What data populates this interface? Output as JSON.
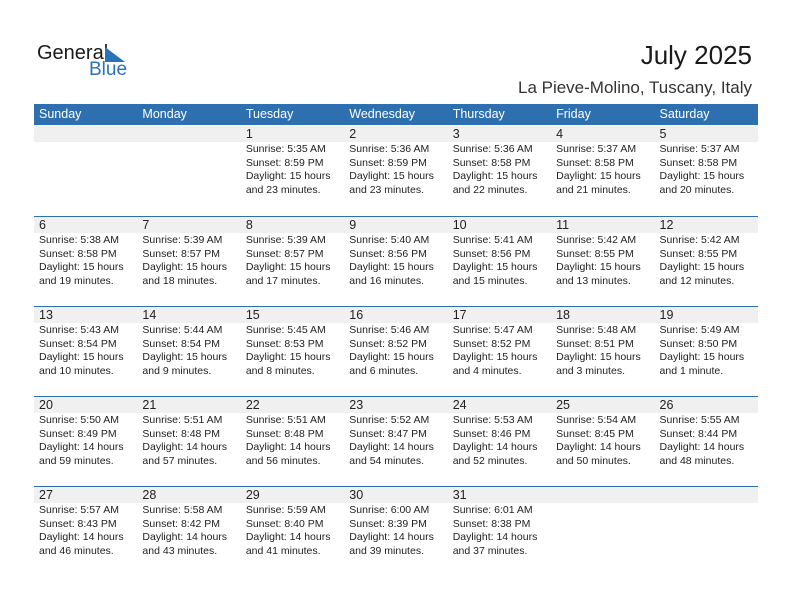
{
  "logo": {
    "general": "General",
    "blue": "Blue"
  },
  "title": "July 2025",
  "location": "La Pieve-Molino, Tuscany, Italy",
  "weekdays": [
    "Sunday",
    "Monday",
    "Tuesday",
    "Wednesday",
    "Thursday",
    "Friday",
    "Saturday"
  ],
  "colors": {
    "header": "#2e6fb0",
    "band": "#f0f0f0"
  },
  "weeks": [
    [
      null,
      null,
      {
        "day": "1",
        "sunrise": "Sunrise: 5:35 AM",
        "sunset": "Sunset: 8:59 PM",
        "daylight1": "Daylight: 15 hours",
        "daylight2": "and 23 minutes."
      },
      {
        "day": "2",
        "sunrise": "Sunrise: 5:36 AM",
        "sunset": "Sunset: 8:59 PM",
        "daylight1": "Daylight: 15 hours",
        "daylight2": "and 23 minutes."
      },
      {
        "day": "3",
        "sunrise": "Sunrise: 5:36 AM",
        "sunset": "Sunset: 8:58 PM",
        "daylight1": "Daylight: 15 hours",
        "daylight2": "and 22 minutes."
      },
      {
        "day": "4",
        "sunrise": "Sunrise: 5:37 AM",
        "sunset": "Sunset: 8:58 PM",
        "daylight1": "Daylight: 15 hours",
        "daylight2": "and 21 minutes."
      },
      {
        "day": "5",
        "sunrise": "Sunrise: 5:37 AM",
        "sunset": "Sunset: 8:58 PM",
        "daylight1": "Daylight: 15 hours",
        "daylight2": "and 20 minutes."
      }
    ],
    [
      {
        "day": "6",
        "sunrise": "Sunrise: 5:38 AM",
        "sunset": "Sunset: 8:58 PM",
        "daylight1": "Daylight: 15 hours",
        "daylight2": "and 19 minutes."
      },
      {
        "day": "7",
        "sunrise": "Sunrise: 5:39 AM",
        "sunset": "Sunset: 8:57 PM",
        "daylight1": "Daylight: 15 hours",
        "daylight2": "and 18 minutes."
      },
      {
        "day": "8",
        "sunrise": "Sunrise: 5:39 AM",
        "sunset": "Sunset: 8:57 PM",
        "daylight1": "Daylight: 15 hours",
        "daylight2": "and 17 minutes."
      },
      {
        "day": "9",
        "sunrise": "Sunrise: 5:40 AM",
        "sunset": "Sunset: 8:56 PM",
        "daylight1": "Daylight: 15 hours",
        "daylight2": "and 16 minutes."
      },
      {
        "day": "10",
        "sunrise": "Sunrise: 5:41 AM",
        "sunset": "Sunset: 8:56 PM",
        "daylight1": "Daylight: 15 hours",
        "daylight2": "and 15 minutes."
      },
      {
        "day": "11",
        "sunrise": "Sunrise: 5:42 AM",
        "sunset": "Sunset: 8:55 PM",
        "daylight1": "Daylight: 15 hours",
        "daylight2": "and 13 minutes."
      },
      {
        "day": "12",
        "sunrise": "Sunrise: 5:42 AM",
        "sunset": "Sunset: 8:55 PM",
        "daylight1": "Daylight: 15 hours",
        "daylight2": "and 12 minutes."
      }
    ],
    [
      {
        "day": "13",
        "sunrise": "Sunrise: 5:43 AM",
        "sunset": "Sunset: 8:54 PM",
        "daylight1": "Daylight: 15 hours",
        "daylight2": "and 10 minutes."
      },
      {
        "day": "14",
        "sunrise": "Sunrise: 5:44 AM",
        "sunset": "Sunset: 8:54 PM",
        "daylight1": "Daylight: 15 hours",
        "daylight2": "and 9 minutes."
      },
      {
        "day": "15",
        "sunrise": "Sunrise: 5:45 AM",
        "sunset": "Sunset: 8:53 PM",
        "daylight1": "Daylight: 15 hours",
        "daylight2": "and 8 minutes."
      },
      {
        "day": "16",
        "sunrise": "Sunrise: 5:46 AM",
        "sunset": "Sunset: 8:52 PM",
        "daylight1": "Daylight: 15 hours",
        "daylight2": "and 6 minutes."
      },
      {
        "day": "17",
        "sunrise": "Sunrise: 5:47 AM",
        "sunset": "Sunset: 8:52 PM",
        "daylight1": "Daylight: 15 hours",
        "daylight2": "and 4 minutes."
      },
      {
        "day": "18",
        "sunrise": "Sunrise: 5:48 AM",
        "sunset": "Sunset: 8:51 PM",
        "daylight1": "Daylight: 15 hours",
        "daylight2": "and 3 minutes."
      },
      {
        "day": "19",
        "sunrise": "Sunrise: 5:49 AM",
        "sunset": "Sunset: 8:50 PM",
        "daylight1": "Daylight: 15 hours",
        "daylight2": "and 1 minute."
      }
    ],
    [
      {
        "day": "20",
        "sunrise": "Sunrise: 5:50 AM",
        "sunset": "Sunset: 8:49 PM",
        "daylight1": "Daylight: 14 hours",
        "daylight2": "and 59 minutes."
      },
      {
        "day": "21",
        "sunrise": "Sunrise: 5:51 AM",
        "sunset": "Sunset: 8:48 PM",
        "daylight1": "Daylight: 14 hours",
        "daylight2": "and 57 minutes."
      },
      {
        "day": "22",
        "sunrise": "Sunrise: 5:51 AM",
        "sunset": "Sunset: 8:48 PM",
        "daylight1": "Daylight: 14 hours",
        "daylight2": "and 56 minutes."
      },
      {
        "day": "23",
        "sunrise": "Sunrise: 5:52 AM",
        "sunset": "Sunset: 8:47 PM",
        "daylight1": "Daylight: 14 hours",
        "daylight2": "and 54 minutes."
      },
      {
        "day": "24",
        "sunrise": "Sunrise: 5:53 AM",
        "sunset": "Sunset: 8:46 PM",
        "daylight1": "Daylight: 14 hours",
        "daylight2": "and 52 minutes."
      },
      {
        "day": "25",
        "sunrise": "Sunrise: 5:54 AM",
        "sunset": "Sunset: 8:45 PM",
        "daylight1": "Daylight: 14 hours",
        "daylight2": "and 50 minutes."
      },
      {
        "day": "26",
        "sunrise": "Sunrise: 5:55 AM",
        "sunset": "Sunset: 8:44 PM",
        "daylight1": "Daylight: 14 hours",
        "daylight2": "and 48 minutes."
      }
    ],
    [
      {
        "day": "27",
        "sunrise": "Sunrise: 5:57 AM",
        "sunset": "Sunset: 8:43 PM",
        "daylight1": "Daylight: 14 hours",
        "daylight2": "and 46 minutes."
      },
      {
        "day": "28",
        "sunrise": "Sunrise: 5:58 AM",
        "sunset": "Sunset: 8:42 PM",
        "daylight1": "Daylight: 14 hours",
        "daylight2": "and 43 minutes."
      },
      {
        "day": "29",
        "sunrise": "Sunrise: 5:59 AM",
        "sunset": "Sunset: 8:40 PM",
        "daylight1": "Daylight: 14 hours",
        "daylight2": "and 41 minutes."
      },
      {
        "day": "30",
        "sunrise": "Sunrise: 6:00 AM",
        "sunset": "Sunset: 8:39 PM",
        "daylight1": "Daylight: 14 hours",
        "daylight2": "and 39 minutes."
      },
      {
        "day": "31",
        "sunrise": "Sunrise: 6:01 AM",
        "sunset": "Sunset: 8:38 PM",
        "daylight1": "Daylight: 14 hours",
        "daylight2": "and 37 minutes."
      },
      null,
      null
    ]
  ]
}
